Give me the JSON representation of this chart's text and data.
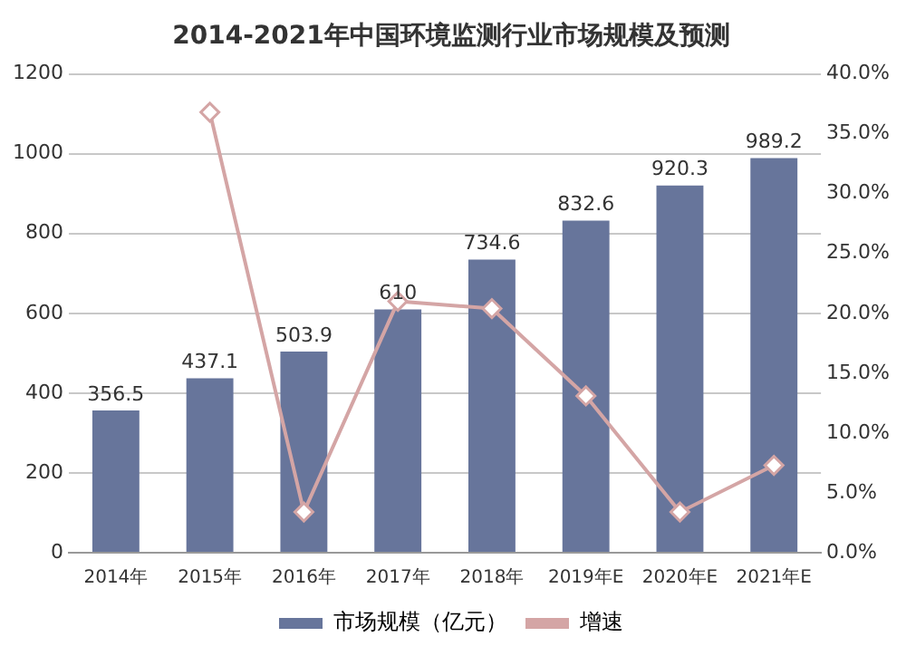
{
  "chart_data": {
    "type": "bar",
    "title": "2014-2021年中国环境监测行业市场规模及预测",
    "categories": [
      "2014年",
      "2015年",
      "2016年",
      "2017年",
      "2018年",
      "2019年E",
      "2020年E",
      "2021年E"
    ],
    "series": [
      {
        "name": "市场规模（亿元）",
        "type": "bar",
        "color": "#67759b",
        "values": [
          356.5,
          437.1,
          503.9,
          610,
          734.6,
          832.6,
          920.3,
          989.2
        ],
        "data_labels": true
      },
      {
        "name": "增速",
        "type": "line",
        "axis": "y2",
        "color": "#d4a5a5",
        "marker": "diamond",
        "values": [
          null,
          36.8,
          3.4,
          21,
          20.4,
          13.1,
          3.4,
          7.3
        ]
      }
    ],
    "ylim": [
      0,
      1200
    ],
    "yticks": [
      0,
      200,
      400,
      600,
      800,
      1000,
      1200
    ],
    "y2lim": [
      0,
      40
    ],
    "y2ticks": [
      {
        "value": 0,
        "label": "0.0%"
      },
      {
        "value": 5,
        "label": "5.0%"
      },
      {
        "value": 10,
        "label": "10.0%"
      },
      {
        "value": 15,
        "label": "15.0%"
      },
      {
        "value": 20,
        "label": "20.0%"
      },
      {
        "value": 25,
        "label": "25.0%"
      },
      {
        "value": 30,
        "label": "30.0%"
      },
      {
        "value": 35,
        "label": "35.0%"
      },
      {
        "value": 40,
        "label": "40.0%"
      }
    ],
    "grid": "y",
    "legend": "bottom"
  }
}
